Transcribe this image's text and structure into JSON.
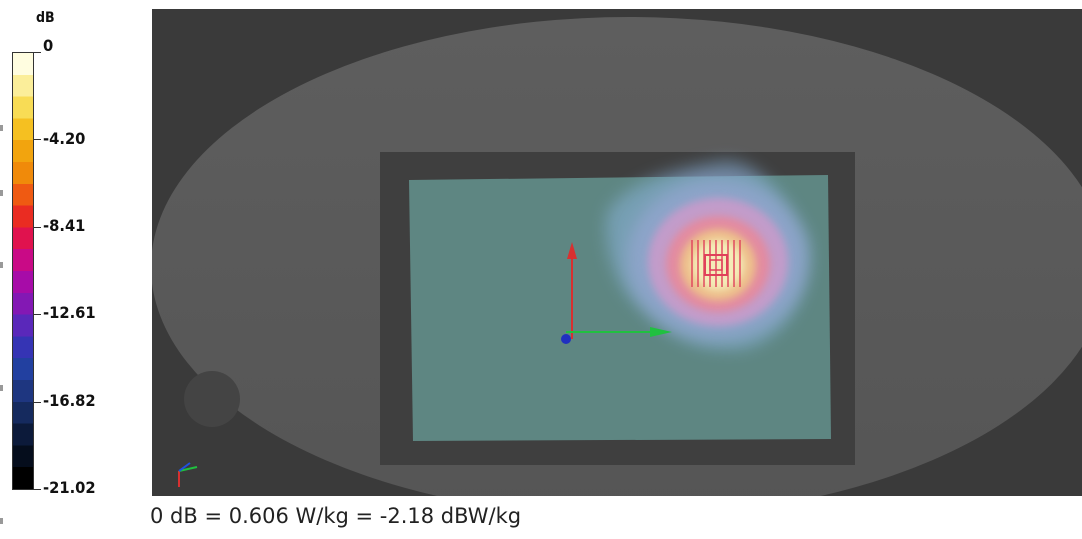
{
  "legend": {
    "unit": "dB",
    "labels": [
      "0",
      "-4.20",
      "-8.41",
      "-12.61",
      "-16.82",
      "-21.02"
    ],
    "colors": [
      "#fffde0",
      "#fbee9a",
      "#f8dc55",
      "#f5c021",
      "#f2a40e",
      "#f08a0a",
      "#ef5a12",
      "#ea2c22",
      "#e0124e",
      "#c90a86",
      "#a70ca8",
      "#8318b4",
      "#5a28ba",
      "#3534b4",
      "#2240a0",
      "#1e3680",
      "#152a5e",
      "#0c1a3a",
      "#050d1c",
      "#000000"
    ]
  },
  "caption": "0 dB = 0.606 W/kg = -2.18 dBW/kg",
  "viewport": {
    "background_color": "#3a3a3a",
    "phantom_color": "#5a5a5a",
    "board_color": "#5e8682"
  }
}
